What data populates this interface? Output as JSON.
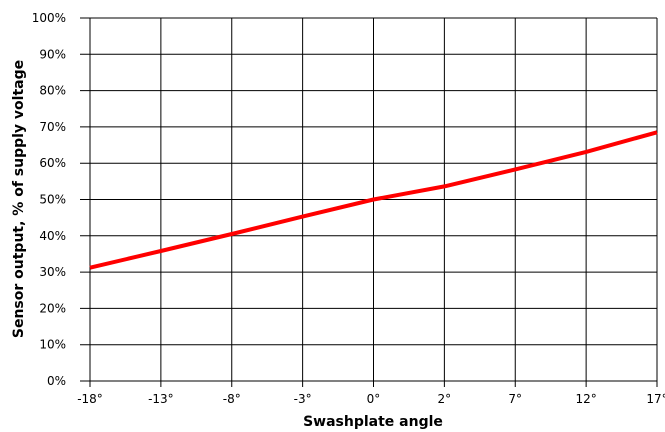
{
  "chart_data": {
    "type": "line",
    "xlabel": "Swashplate angle",
    "ylabel": "Sensor output, % of supply voltage",
    "x_ticks": [
      "-18°",
      "-13°",
      "-8°",
      "-3°",
      "0°",
      "2°",
      "7°",
      "12°",
      "17°"
    ],
    "y_ticks": [
      "0%",
      "10%",
      "20%",
      "30%",
      "40%",
      "50%",
      "60%",
      "70%",
      "80%",
      "90%",
      "100%"
    ],
    "ylim": [
      0,
      100
    ],
    "grid": true,
    "series": [
      {
        "color": "#ff0000",
        "x": [
          "-18°",
          "-13°",
          "-8°",
          "-3°",
          "0°",
          "2°",
          "7°",
          "12°",
          "17°"
        ],
        "y": [
          31.2,
          35.8,
          40.5,
          45.3,
          50.0,
          53.6,
          58.3,
          63.1,
          68.5
        ]
      }
    ]
  }
}
